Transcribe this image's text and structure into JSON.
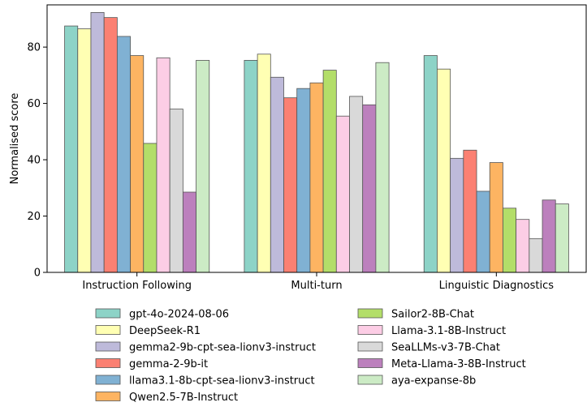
{
  "chart_data": {
    "type": "bar",
    "title": "",
    "xlabel": "",
    "ylabel": "Normalised score",
    "ylim": [
      0,
      95
    ],
    "yticks": [
      0,
      20,
      40,
      60,
      80
    ],
    "grid": false,
    "legend_position": "bottom",
    "categories": [
      "Instruction Following",
      "Multi-turn",
      "Linguistic Diagnostics"
    ],
    "series": [
      {
        "name": "gpt-4o-2024-08-06",
        "color": "#8dd3c7",
        "values": [
          87.5,
          75.3,
          77.0
        ]
      },
      {
        "name": "DeepSeek-R1",
        "color": "#ffffb3",
        "values": [
          86.5,
          77.5,
          72.2
        ]
      },
      {
        "name": "gemma2-9b-cpt-sea-lionv3-instruct",
        "color": "#bebada",
        "values": [
          92.3,
          69.3,
          40.5
        ]
      },
      {
        "name": "gemma-2-9b-it",
        "color": "#fb8072",
        "values": [
          90.5,
          62.0,
          43.4
        ]
      },
      {
        "name": "llama3.1-8b-cpt-sea-lionv3-instruct",
        "color": "#80b1d3",
        "values": [
          83.8,
          65.3,
          28.8
        ]
      },
      {
        "name": "Qwen2.5-7B-Instruct",
        "color": "#fdb462",
        "values": [
          77.0,
          67.3,
          39.0
        ]
      },
      {
        "name": "Sailor2-8B-Chat",
        "color": "#b3de69",
        "values": [
          45.8,
          71.8,
          22.8
        ]
      },
      {
        "name": "Llama-3.1-8B-Instruct",
        "color": "#fccde5",
        "values": [
          76.2,
          55.5,
          18.8
        ]
      },
      {
        "name": "SeaLLMs-v3-7B-Chat",
        "color": "#d9d9d9",
        "values": [
          58.0,
          62.5,
          12.0
        ]
      },
      {
        "name": "Meta-Llama-3-8B-Instruct",
        "color": "#bc80bd",
        "values": [
          28.5,
          59.5,
          25.7
        ]
      },
      {
        "name": "aya-expanse-8b",
        "color": "#ccebc5",
        "values": [
          75.3,
          74.5,
          24.3
        ]
      }
    ]
  }
}
